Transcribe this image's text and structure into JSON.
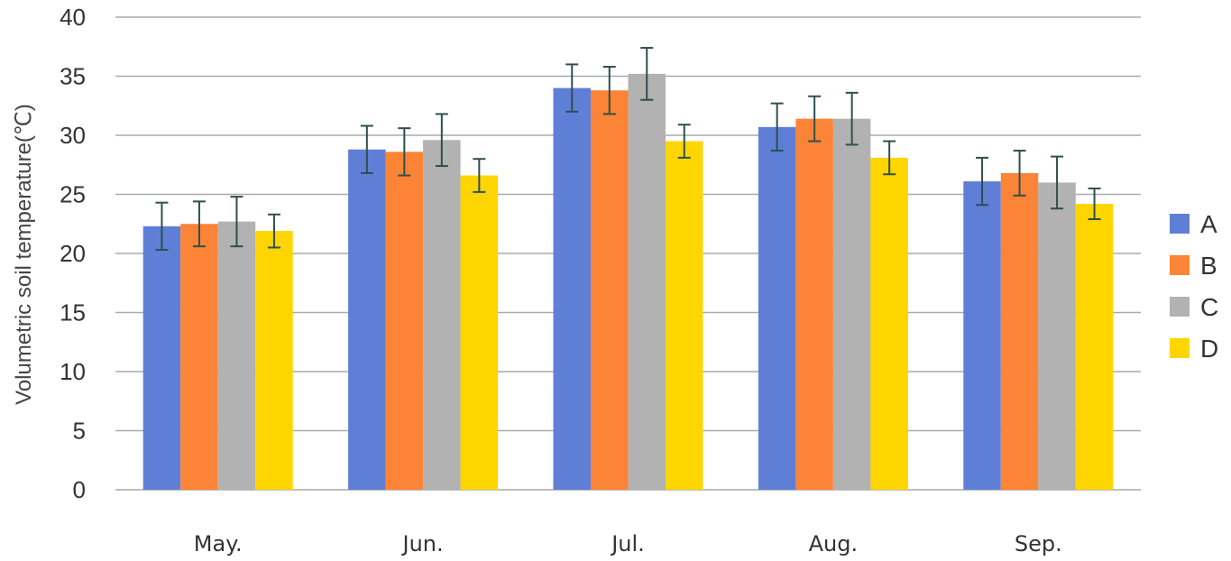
{
  "chart_data": {
    "type": "bar",
    "title": "",
    "xlabel": "",
    "ylabel": "Volumetric soil temperature(℃)",
    "categories": [
      "May.",
      "Jun.",
      "Jul.",
      "Aug.",
      "Sep."
    ],
    "ylim": [
      0,
      40
    ],
    "yticks": [
      0,
      5,
      10,
      15,
      20,
      25,
      30,
      35,
      40
    ],
    "grid": true,
    "legend_position": "right",
    "error_bars": true,
    "series": [
      {
        "name": "A",
        "color": "#5F7FD7",
        "values": [
          22.3,
          28.8,
          34.0,
          30.7,
          26.1
        ],
        "errors": [
          2.0,
          2.0,
          2.0,
          2.0,
          2.0
        ]
      },
      {
        "name": "B",
        "color": "#FC8436",
        "values": [
          22.5,
          28.6,
          33.8,
          31.4,
          26.8
        ],
        "errors": [
          1.9,
          2.0,
          2.0,
          1.9,
          1.9
        ]
      },
      {
        "name": "C",
        "color": "#B2B2B2",
        "values": [
          22.7,
          29.6,
          35.2,
          31.4,
          26.0
        ],
        "errors": [
          2.1,
          2.2,
          2.2,
          2.2,
          2.2
        ]
      },
      {
        "name": "D",
        "color": "#FFD500",
        "values": [
          21.9,
          26.6,
          29.5,
          28.1,
          24.2
        ],
        "errors": [
          1.4,
          1.4,
          1.4,
          1.4,
          1.3
        ]
      }
    ],
    "error_bar_color": "#2F4F4F",
    "grid_color": "#AAAAAA"
  }
}
